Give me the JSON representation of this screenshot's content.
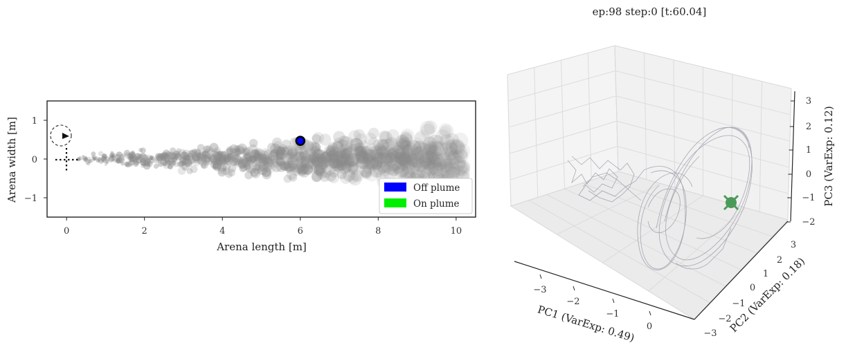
{
  "title": "ep:98 step:0 [t:60.04]",
  "chart_data": [
    {
      "type": "scatter",
      "xlabel": "Arena length [m]",
      "ylabel": "Arena width [m]",
      "xlim": [
        -0.5,
        10.5
      ],
      "ylim": [
        -1.5,
        1.5
      ],
      "x_ticks": [
        "0",
        "2",
        "4",
        "6",
        "8",
        "10"
      ],
      "y_ticks": [
        "1",
        "0",
        "−1"
      ],
      "legend": [
        "Off plume",
        "On plume"
      ],
      "legend_placement": "lower-right",
      "agent": {
        "x": 6.0,
        "y": 0.47,
        "state": "Off plume"
      },
      "source": {
        "x": 0.0,
        "y": 0.0
      }
    },
    {
      "type": "line3d",
      "xlabel": "PC1 (VarExp: 0.49)",
      "ylabel": "PC2 (VarExp: 0.18)",
      "zlabel": "PC3 (VarExp: 0.12)",
      "xlim": [
        -3.5,
        0.5
      ],
      "ylim": [
        -3,
        3
      ],
      "zlim": [
        -2,
        3
      ],
      "x_ticks": [
        "−3",
        "−2",
        "−1",
        "0"
      ],
      "y_ticks": [
        "−3",
        "−2",
        "−1",
        "0",
        "1",
        "2",
        "3"
      ],
      "z_ticks": [
        "3",
        "2",
        "1",
        "0",
        "−1",
        "−2"
      ],
      "grid": true
    }
  ],
  "colors": {
    "off_plume": "#0000ff",
    "on_plume": "#00ee00",
    "puff": "#8a8a8a",
    "trajectory": "#9a9aa8",
    "marker": "#4c9a5a"
  }
}
